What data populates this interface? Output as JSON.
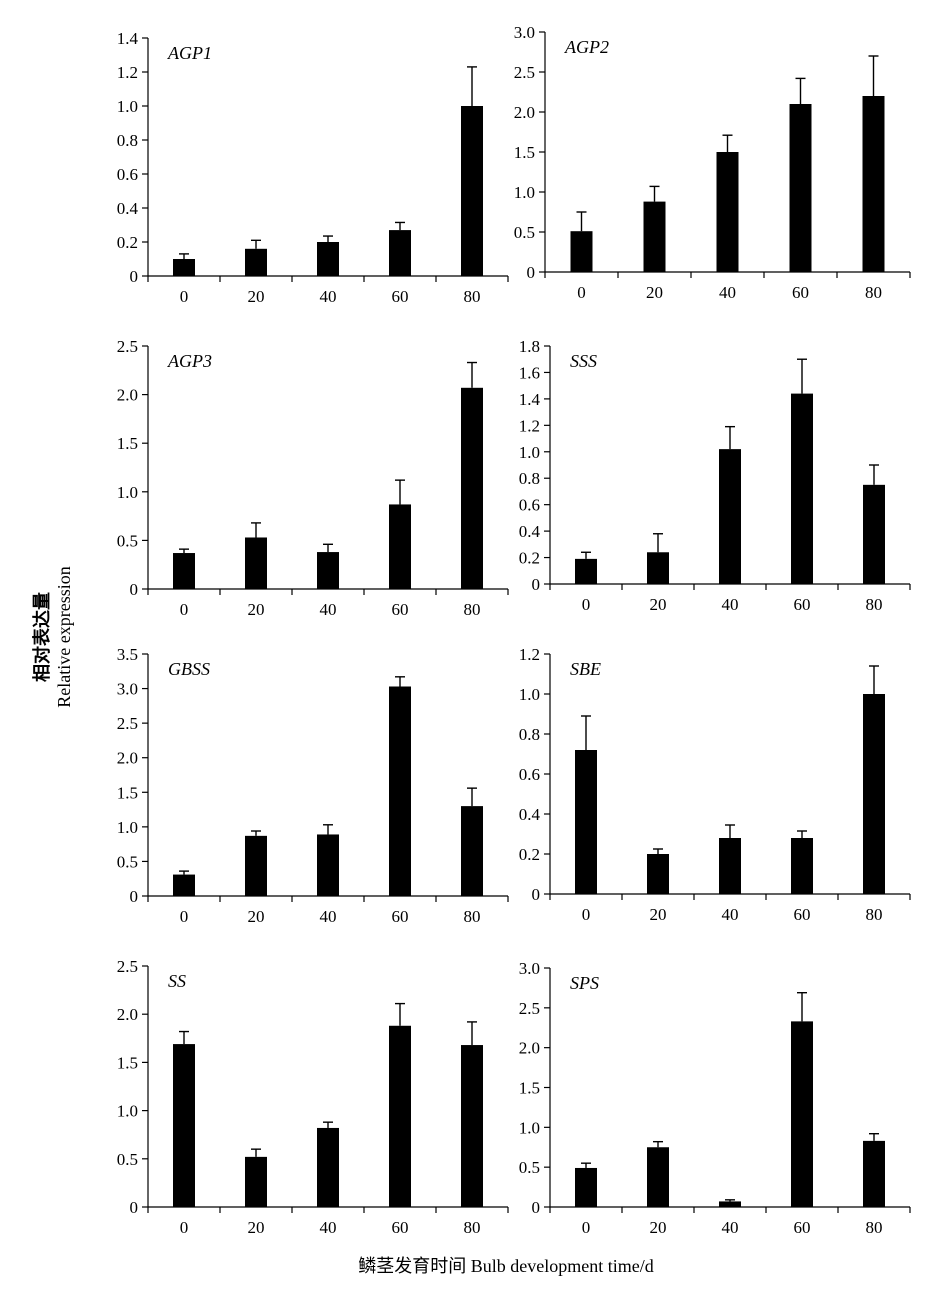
{
  "figure": {
    "ylabel_cn": "相对表达量",
    "ylabel_en": "Relative expression",
    "xlabel": "鳞茎发育时间 Bulb development time/d"
  },
  "chart_data": [
    {
      "type": "bar",
      "title": "AGP1",
      "categories": [
        "0",
        "20",
        "40",
        "60",
        "80"
      ],
      "values": [
        0.1,
        0.16,
        0.2,
        0.27,
        1.0
      ],
      "errors": [
        0.03,
        0.05,
        0.035,
        0.045,
        0.23
      ],
      "ylim": [
        0,
        1.4
      ],
      "yticks": [
        "0",
        "0.2",
        "0.4",
        "0.6",
        "0.8",
        "1.0",
        "1.2",
        "1.4"
      ],
      "bar_color": "#000000"
    },
    {
      "type": "bar",
      "title": "AGP2",
      "categories": [
        "0",
        "20",
        "40",
        "60",
        "80"
      ],
      "values": [
        0.51,
        0.88,
        1.5,
        2.1,
        2.2
      ],
      "errors": [
        0.24,
        0.19,
        0.21,
        0.32,
        0.5
      ],
      "ylim": [
        0,
        3.0
      ],
      "yticks": [
        "0",
        "0.5",
        "1.0",
        "1.5",
        "2.0",
        "2.5",
        "3.0"
      ],
      "bar_color": "#000000"
    },
    {
      "type": "bar",
      "title": "AGP3",
      "categories": [
        "0",
        "20",
        "40",
        "60",
        "80"
      ],
      "values": [
        0.37,
        0.53,
        0.38,
        0.87,
        2.07
      ],
      "errors": [
        0.04,
        0.15,
        0.08,
        0.25,
        0.26
      ],
      "ylim": [
        0,
        2.5
      ],
      "yticks": [
        "0",
        "0.5",
        "1.0",
        "1.5",
        "2.0",
        "2.5"
      ],
      "bar_color": "#000000"
    },
    {
      "type": "bar",
      "title": "SSS",
      "categories": [
        "0",
        "20",
        "40",
        "60",
        "80"
      ],
      "values": [
        0.19,
        0.24,
        1.02,
        1.44,
        0.75
      ],
      "errors": [
        0.05,
        0.14,
        0.17,
        0.26,
        0.15
      ],
      "ylim": [
        0,
        1.8
      ],
      "yticks": [
        "0",
        "0.2",
        "0.4",
        "0.6",
        "0.8",
        "1.0",
        "1.2",
        "1.4",
        "1.6",
        "1.8"
      ],
      "bar_color": "#000000"
    },
    {
      "type": "bar",
      "title": "GBSS",
      "categories": [
        "0",
        "20",
        "40",
        "60",
        "80"
      ],
      "values": [
        0.31,
        0.87,
        0.89,
        3.03,
        1.3
      ],
      "errors": [
        0.05,
        0.07,
        0.14,
        0.14,
        0.26
      ],
      "ylim": [
        0,
        3.5
      ],
      "yticks": [
        "0",
        "0.5",
        "1.0",
        "1.5",
        "2.0",
        "2.5",
        "3.0",
        "3.5"
      ],
      "bar_color": "#000000"
    },
    {
      "type": "bar",
      "title": "SBE",
      "categories": [
        "0",
        "20",
        "40",
        "60",
        "80"
      ],
      "values": [
        0.72,
        0.2,
        0.28,
        0.28,
        1.0
      ],
      "errors": [
        0.17,
        0.025,
        0.065,
        0.035,
        0.14
      ],
      "ylim": [
        0,
        1.2
      ],
      "yticks": [
        "0",
        "0.2",
        "0.4",
        "0.6",
        "0.8",
        "1.0",
        "1.2"
      ],
      "bar_color": "#000000"
    },
    {
      "type": "bar",
      "title": "SS",
      "categories": [
        "0",
        "20",
        "40",
        "60",
        "80"
      ],
      "values": [
        1.69,
        0.52,
        0.82,
        1.88,
        1.68
      ],
      "errors": [
        0.13,
        0.08,
        0.06,
        0.23,
        0.24
      ],
      "ylim": [
        0,
        2.5
      ],
      "yticks": [
        "0",
        "0.5",
        "1.0",
        "1.5",
        "2.0",
        "2.5"
      ],
      "bar_color": "#000000"
    },
    {
      "type": "bar",
      "title": "SPS",
      "categories": [
        "0",
        "20",
        "40",
        "60",
        "80"
      ],
      "values": [
        0.49,
        0.75,
        0.07,
        2.33,
        0.83
      ],
      "errors": [
        0.06,
        0.07,
        0.02,
        0.36,
        0.09
      ],
      "ylim": [
        0,
        3.0
      ],
      "yticks": [
        "0",
        "0.5",
        "1.0",
        "1.5",
        "2.0",
        "2.5",
        "3.0"
      ],
      "bar_color": "#000000"
    }
  ]
}
